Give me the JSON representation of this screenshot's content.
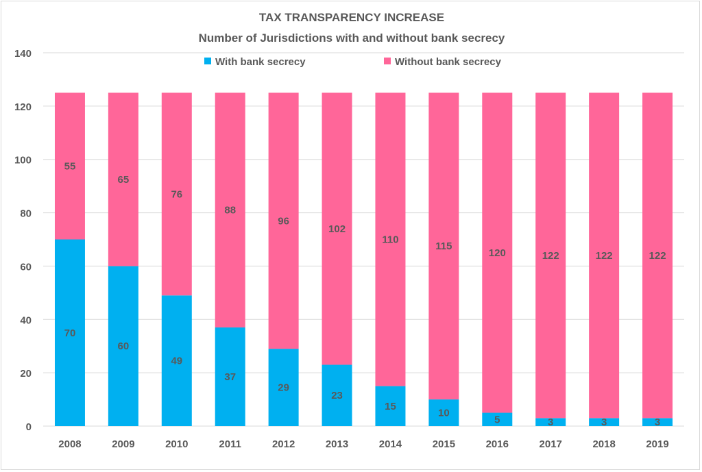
{
  "chart_data": {
    "type": "stacked-bar",
    "title": "TAX TRANSPARENCY  INCREASE",
    "subtitle": "Number of Jurisdictions with and without bank secrecy",
    "xlabel": "",
    "ylabel": "",
    "ylim": [
      0,
      140
    ],
    "yticks": [
      0,
      20,
      40,
      60,
      80,
      100,
      120,
      140
    ],
    "grid": true,
    "legend_position": "top",
    "categories": [
      "2008",
      "2009",
      "2010",
      "2011",
      "2012",
      "2013",
      "2014",
      "2015",
      "2016",
      "2017",
      "2018",
      "2019"
    ],
    "series": [
      {
        "name": "With bank secrecy",
        "color": "#00b0f0",
        "values": [
          70,
          60,
          49,
          37,
          29,
          23,
          15,
          10,
          5,
          3,
          3,
          3
        ]
      },
      {
        "name": "Without bank secrecy",
        "color": "#ff6699",
        "values": [
          55,
          65,
          76,
          88,
          96,
          102,
          110,
          115,
          120,
          122,
          122,
          122
        ]
      }
    ]
  }
}
